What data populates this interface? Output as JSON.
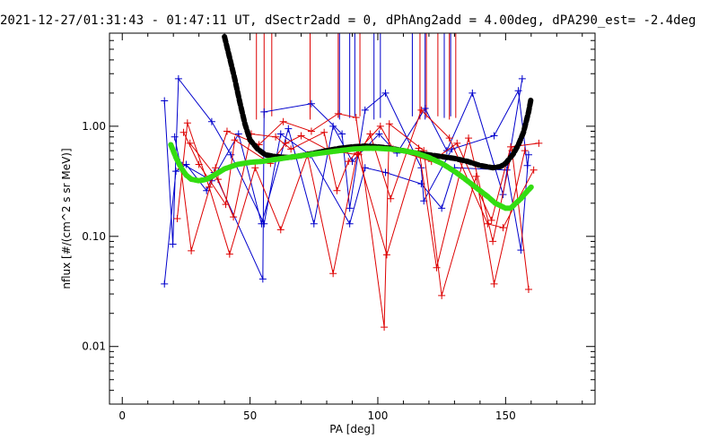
{
  "chart_data": {
    "type": "line",
    "title": "2021-12-27/01:31:43 - 01:47:11 UT, dSectr2add = 0, dPhAng2add = 4.00deg, dPA290_est=  -2.4deg",
    "xlabel": "PA [deg]",
    "ylabel": "nflux [#/(cm^2 s sr MeV)]",
    "xlim": [
      -5,
      185
    ],
    "ylim": [
      0.003,
      7
    ],
    "yscale": "log",
    "x_ticks": [
      0,
      50,
      100,
      150
    ],
    "x_tick_labels": [
      "0",
      "50",
      "100",
      "150"
    ],
    "y_ticks": [
      0.01,
      0.1,
      1
    ],
    "y_tick_labels": [
      "0.01",
      "0.10",
      "1.00"
    ],
    "grid": false,
    "legend": "none",
    "series": [
      {
        "color": "#0000cc",
        "marker": "+",
        "x": [
          16.5,
          19.8,
          22.0,
          35.0,
          42.5,
          55.5,
          62.0,
          73.5,
          89.0,
          95.0,
          103.0,
          117.0,
          125.0,
          130.0,
          150.5,
          156.0,
          159.0
        ],
        "y": [
          1.7,
          0.085,
          2.7,
          1.1,
          0.55,
          0.13,
          0.85,
          0.55,
          0.13,
          0.42,
          0.38,
          0.3,
          0.18,
          0.42,
          0.4,
          0.075,
          0.55
        ]
      },
      {
        "color": "#0000cc",
        "marker": "+",
        "x": [
          16.5,
          21.0,
          25.0,
          33.0,
          36.0,
          55.0,
          55.5,
          74.0,
          86.0,
          89.0,
          95.0,
          103.0,
          117.0,
          118.0,
          129.0,
          145.5,
          155.0,
          158.5
        ],
        "y": [
          0.037,
          0.39,
          0.45,
          0.26,
          0.38,
          0.041,
          1.35,
          1.6,
          0.85,
          0.18,
          1.4,
          2.0,
          0.42,
          0.21,
          0.62,
          0.82,
          2.1,
          0.44
        ]
      },
      {
        "color": "#0000cc",
        "marker": "+",
        "x": [
          20.5,
          22.5,
          35.0,
          45.5,
          54.5,
          65.0,
          75.0,
          82.5,
          90.0,
          100.5,
          107.5,
          118.5,
          127.0,
          137.0,
          149.0,
          156.5
        ],
        "y": [
          0.8,
          0.47,
          0.32,
          0.85,
          0.13,
          0.95,
          0.13,
          1.0,
          0.48,
          0.85,
          0.57,
          1.45,
          0.6,
          2.0,
          0.24,
          2.7
        ]
      },
      {
        "color": "#dd0000",
        "marker": "+",
        "x": [
          21.5,
          25.5,
          34.0,
          42.0,
          52.0,
          62.0,
          72.5,
          82.5,
          92.0,
          103.5,
          116.0,
          123.0,
          135.5,
          145.0,
          152.5,
          159.0
        ],
        "y": [
          0.145,
          1.07,
          0.28,
          0.069,
          0.42,
          0.115,
          0.55,
          0.046,
          0.57,
          0.068,
          0.63,
          0.052,
          0.78,
          0.09,
          0.6,
          0.033
        ]
      },
      {
        "color": "#dd0000",
        "marker": "+",
        "x": [
          23.0,
          27.0,
          36.5,
          41.0,
          53.5,
          63.0,
          74.0,
          84.5,
          91.5,
          102.5,
          104.5,
          118.0,
          125.0,
          138.5,
          145.5,
          157.5
        ],
        "y": [
          0.41,
          0.074,
          0.42,
          0.9,
          0.68,
          1.1,
          0.9,
          1.3,
          1.2,
          0.015,
          1.05,
          0.6,
          0.029,
          0.35,
          0.037,
          0.6
        ]
      },
      {
        "color": "#dd0000",
        "marker": "+",
        "x": [
          24.0,
          30.0,
          40.5,
          44.0,
          58.0,
          64.0,
          70.0,
          81.0,
          92.5,
          97.0,
          105.0,
          117.0,
          128.0,
          143.0,
          149.0,
          161.0
        ],
        "y": [
          0.88,
          0.45,
          0.195,
          0.75,
          0.46,
          0.7,
          0.82,
          0.6,
          0.55,
          0.85,
          0.22,
          1.4,
          0.78,
          0.13,
          0.12,
          0.4
        ]
      },
      {
        "color": "#dd0000",
        "marker": "+",
        "x": [
          26.5,
          37.5,
          43.5,
          50.5,
          60.0,
          66.0,
          79.0,
          84.0,
          88.5,
          101.0,
          106.0,
          121.0,
          131.0,
          144.5,
          152.0,
          163.0
        ],
        "y": [
          0.7,
          0.33,
          0.15,
          0.85,
          0.8,
          0.62,
          0.88,
          0.26,
          0.48,
          1.0,
          0.62,
          0.48,
          0.7,
          0.14,
          0.65,
          0.7
        ]
      },
      {
        "color": "#000000",
        "style": "dashed-thick",
        "x": [
          40,
          42,
          44,
          46,
          48,
          50,
          53,
          56,
          60,
          65,
          70,
          75,
          80,
          85,
          90,
          95,
          100,
          105,
          110,
          115,
          120,
          125,
          130,
          135,
          140,
          145,
          148,
          150,
          153,
          155,
          157,
          159,
          160
        ],
        "y": [
          6.5,
          4.2,
          2.7,
          1.65,
          1.05,
          0.75,
          0.62,
          0.55,
          0.53,
          0.52,
          0.54,
          0.57,
          0.6,
          0.63,
          0.65,
          0.66,
          0.65,
          0.63,
          0.6,
          0.57,
          0.55,
          0.53,
          0.51,
          0.48,
          0.44,
          0.42,
          0.43,
          0.46,
          0.56,
          0.68,
          0.88,
          1.35,
          1.8
        ]
      },
      {
        "color": "#33dd11",
        "style": "thick",
        "x": [
          19,
          21,
          23,
          25,
          27,
          30,
          33,
          36,
          40,
          45,
          50,
          55,
          60,
          65,
          70,
          75,
          80,
          85,
          90,
          95,
          100,
          105,
          110,
          115,
          120,
          125,
          130,
          135,
          140,
          143,
          146,
          148,
          150,
          152,
          154,
          156,
          158,
          160
        ],
        "y": [
          0.68,
          0.52,
          0.42,
          0.36,
          0.33,
          0.32,
          0.33,
          0.36,
          0.41,
          0.45,
          0.47,
          0.48,
          0.5,
          0.52,
          0.54,
          0.56,
          0.58,
          0.6,
          0.62,
          0.63,
          0.63,
          0.62,
          0.6,
          0.57,
          0.52,
          0.46,
          0.39,
          0.32,
          0.26,
          0.23,
          0.2,
          0.19,
          0.18,
          0.18,
          0.2,
          0.22,
          0.25,
          0.28
        ]
      }
    ],
    "clipped_vertical_lines": [
      {
        "color": "#dd0000",
        "x": [
          52.5,
          55.5,
          58.5,
          73.5,
          84.5,
          93.0,
          116.5,
          119.0,
          123.5,
          128.0,
          130.5
        ]
      },
      {
        "color": "#0000cc",
        "x": [
          85.0,
          89.0,
          91.0,
          98.5,
          101.0,
          113.5,
          118.5,
          126.0,
          128.5
        ]
      }
    ]
  }
}
